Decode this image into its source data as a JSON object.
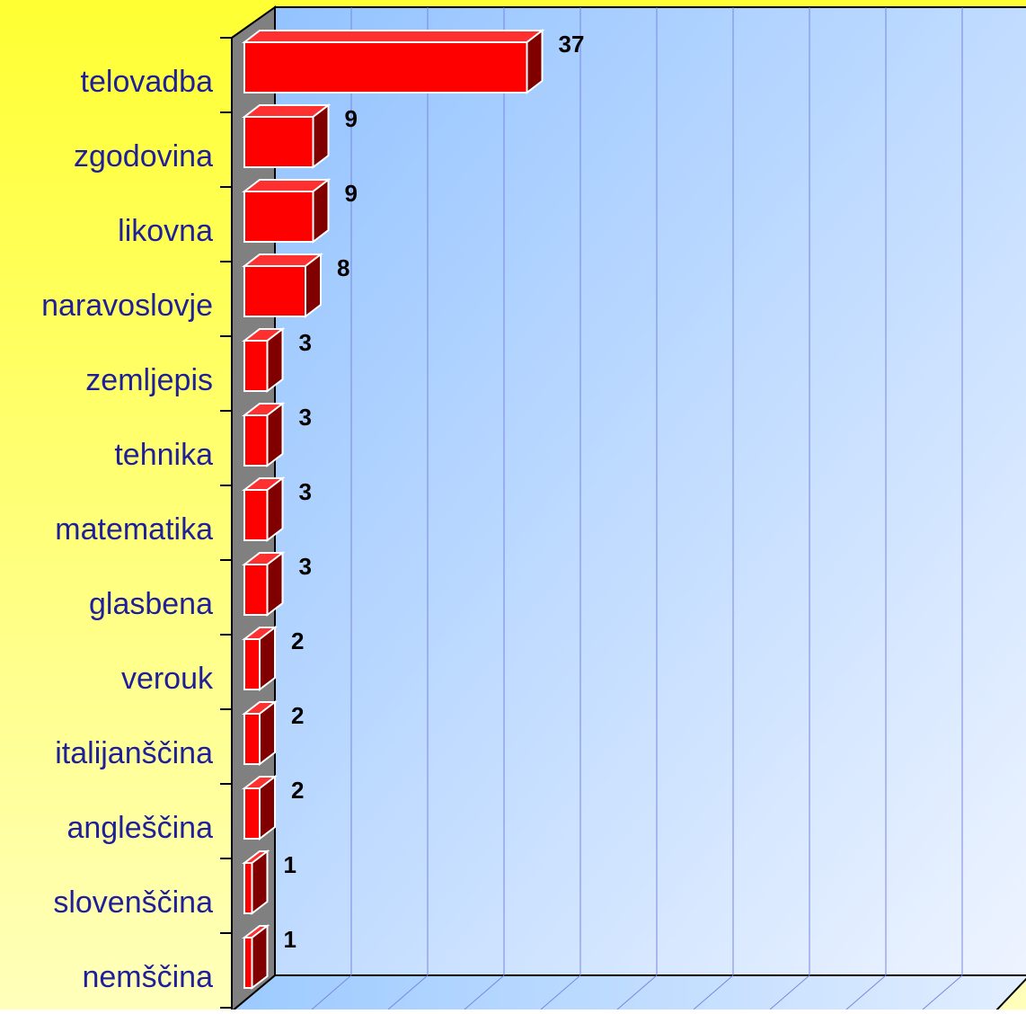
{
  "chart_data": {
    "type": "bar3d_horizontal",
    "categories": [
      "telovadba",
      "zgodovina",
      "likovna",
      "naravoslovje",
      "zemljepis",
      "tehnika",
      "matematika",
      "glasbena",
      "verouk",
      "italijanščina",
      "angleščina",
      "slovenščina",
      "nemščina"
    ],
    "values": [
      37,
      9,
      9,
      8,
      3,
      3,
      3,
      3,
      2,
      2,
      2,
      1,
      1
    ],
    "color": "#ff0000",
    "xlim": [
      0,
      100
    ],
    "xticks": [
      0,
      10,
      20,
      30,
      40,
      50,
      60,
      70,
      80,
      90
    ],
    "grid": true
  }
}
